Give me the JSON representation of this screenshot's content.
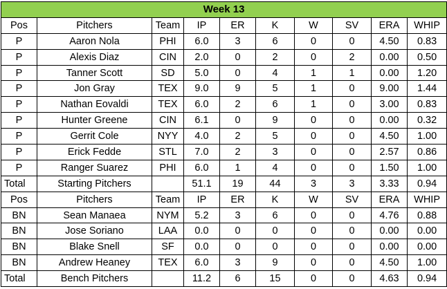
{
  "title": "Week 13",
  "colors": {
    "title_fill": "#92d050"
  },
  "starters": {
    "headers": [
      "Pos",
      "Pitchers",
      "Team",
      "IP",
      "ER",
      "K",
      "W",
      "SV",
      "ERA",
      "WHIP"
    ],
    "rows": [
      [
        "P",
        "Aaron Nola",
        "PHI",
        "6.0",
        "3",
        "6",
        "0",
        "0",
        "4.50",
        "0.83"
      ],
      [
        "P",
        "Alexis Diaz",
        "CIN",
        "2.0",
        "0",
        "2",
        "0",
        "2",
        "0.00",
        "0.50"
      ],
      [
        "P",
        "Tanner Scott",
        "SD",
        "5.0",
        "0",
        "4",
        "1",
        "1",
        "0.00",
        "1.20"
      ],
      [
        "P",
        "Jon Gray",
        "TEX",
        "9.0",
        "9",
        "5",
        "1",
        "0",
        "9.00",
        "1.44"
      ],
      [
        "P",
        "Nathan Eovaldi",
        "TEX",
        "6.0",
        "2",
        "6",
        "1",
        "0",
        "3.00",
        "0.83"
      ],
      [
        "P",
        "Hunter Greene",
        "CIN",
        "6.1",
        "0",
        "9",
        "0",
        "0",
        "0.00",
        "0.32"
      ],
      [
        "P",
        "Gerrit Cole",
        "NYY",
        "4.0",
        "2",
        "5",
        "0",
        "0",
        "4.50",
        "1.00"
      ],
      [
        "P",
        "Erick Fedde",
        "STL",
        "7.0",
        "2",
        "3",
        "0",
        "0",
        "2.57",
        "0.86"
      ],
      [
        "P",
        "Ranger Suarez",
        "PHI",
        "6.0",
        "1",
        "4",
        "0",
        "0",
        "1.50",
        "1.00"
      ]
    ],
    "total": [
      "Total",
      "Starting Pitchers",
      "",
      "51.1",
      "19",
      "44",
      "3",
      "3",
      "3.33",
      "0.94"
    ]
  },
  "bench": {
    "headers": [
      "Pos",
      "Pitchers",
      "Team",
      "IP",
      "ER",
      "K",
      "W",
      "SV",
      "ERA",
      "WHIP"
    ],
    "rows": [
      [
        "BN",
        "Sean Manaea",
        "NYM",
        "5.2",
        "3",
        "6",
        "0",
        "0",
        "4.76",
        "0.88"
      ],
      [
        "BN",
        "Jose Soriano",
        "LAA",
        "0.0",
        "0",
        "0",
        "0",
        "0",
        "0.00",
        "0.00"
      ],
      [
        "BN",
        "Blake Snell",
        "SF",
        "0.0",
        "0",
        "0",
        "0",
        "0",
        "0.00",
        "0.00"
      ],
      [
        "BN",
        "Andrew Heaney",
        "TEX",
        "6.0",
        "3",
        "9",
        "0",
        "0",
        "4.50",
        "1.00"
      ]
    ],
    "total": [
      "Total",
      "Bench Pitchers",
      "",
      "11.2",
      "6",
      "15",
      "0",
      "0",
      "4.63",
      "0.94"
    ]
  }
}
